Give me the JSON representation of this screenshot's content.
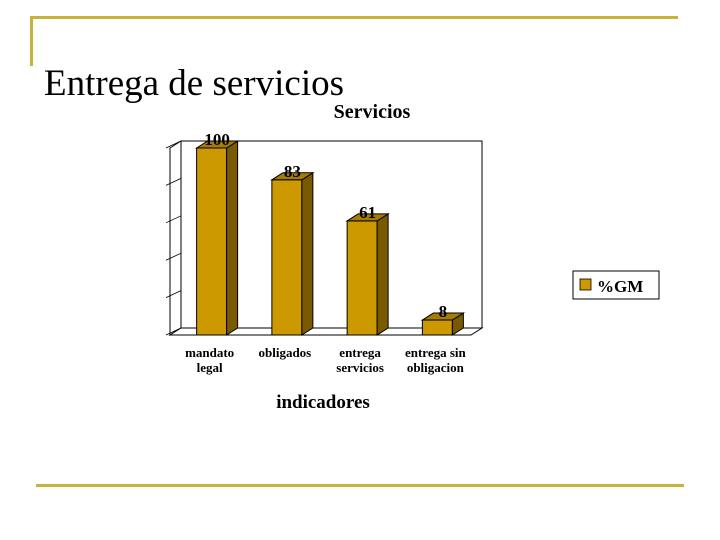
{
  "slide": {
    "title": "Entrega de servicios"
  },
  "colors": {
    "accent": "#c8b23c",
    "bar_front": "#cc9900",
    "bar_side": "#7a5a00",
    "bar_top": "#a67c00"
  },
  "chart_data": {
    "type": "bar",
    "title": "Servicios",
    "xlabel": "indicadores",
    "ylabel": "",
    "categories": [
      [
        "mandato",
        "legal"
      ],
      [
        "obligados"
      ],
      [
        "entrega",
        "servicios"
      ],
      [
        "entrega sin",
        "obligacion"
      ]
    ],
    "series": [
      {
        "name": "%GM",
        "values": [
          100,
          83,
          61,
          8
        ]
      }
    ],
    "data_labels": [
      "100",
      "83",
      "61",
      "8"
    ],
    "ylim": [
      0,
      100
    ],
    "grid": false,
    "legend": "right",
    "style": "3d"
  }
}
